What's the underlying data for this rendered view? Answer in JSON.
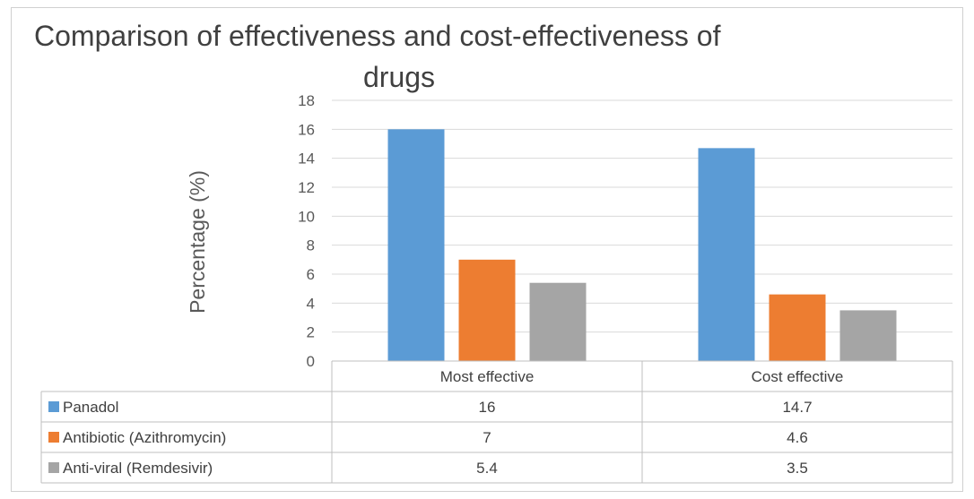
{
  "chart_data": {
    "type": "bar",
    "title_line1": "Comparison of effectiveness and cost-effectiveness of",
    "title_line2": "drugs",
    "ylabel": "Percentage (%)",
    "xlabel": "",
    "ylim": [
      0,
      18
    ],
    "yticks": [
      0,
      2,
      4,
      6,
      8,
      10,
      12,
      14,
      16,
      18
    ],
    "categories": [
      "Most effective",
      "Cost effective"
    ],
    "series": [
      {
        "name": "Panadol",
        "color": "#5b9bd5",
        "values": [
          16,
          14.7
        ],
        "labels": [
          "16",
          "14.7"
        ]
      },
      {
        "name": "Antibiotic (Azithromycin)",
        "color": "#ed7d31",
        "values": [
          7,
          4.6
        ],
        "labels": [
          "7",
          "4.6"
        ]
      },
      {
        "name": "Anti-viral (Remdesivir)",
        "color": "#a5a5a5",
        "values": [
          5.4,
          3.5
        ],
        "labels": [
          "5.4",
          "3.5"
        ]
      }
    ],
    "gridlines": true,
    "legend": "data-table"
  }
}
